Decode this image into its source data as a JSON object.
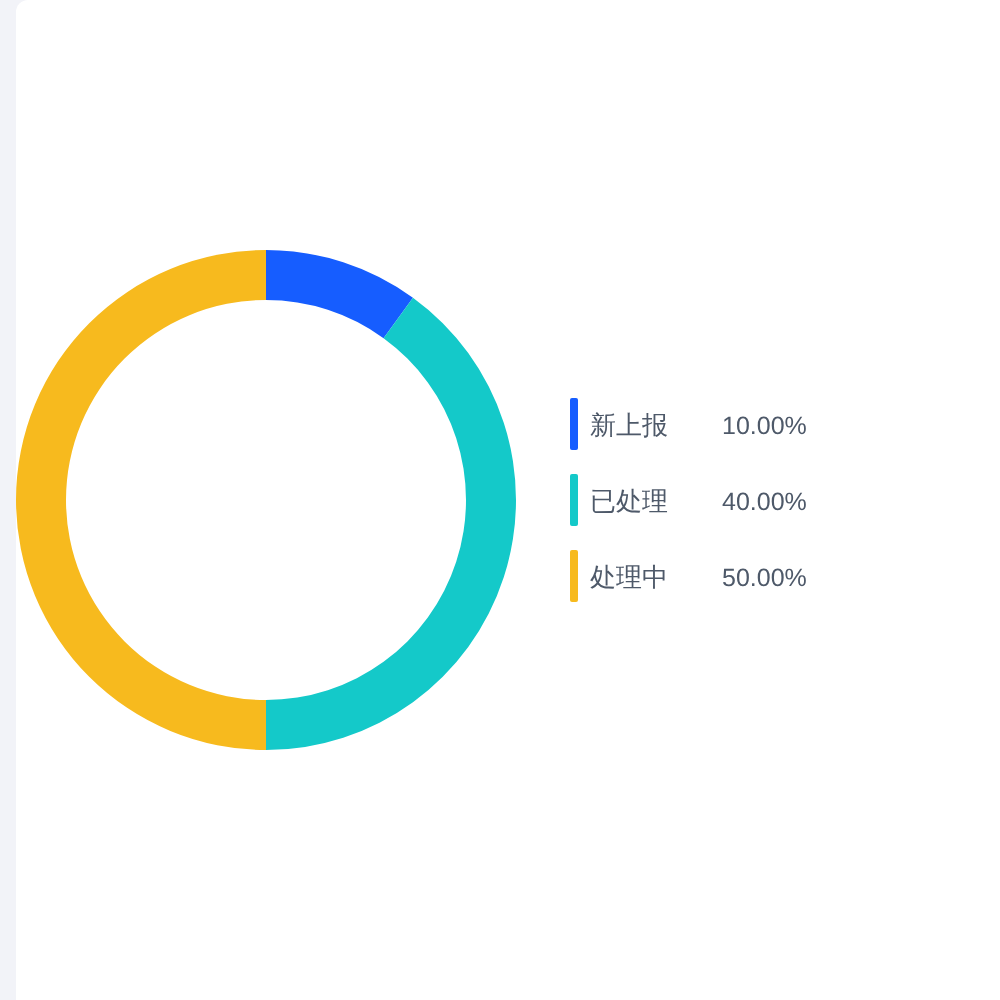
{
  "chart_data": {
    "type": "donut",
    "categories": [
      "新上报",
      "已处理",
      "处理中"
    ],
    "values": [
      10,
      40,
      50
    ],
    "colors": [
      "#165dff",
      "#14c9c9",
      "#f7ba1e"
    ],
    "value_labels": [
      "10.00%",
      "40.00%",
      "50.00%"
    ],
    "legend": "right"
  }
}
